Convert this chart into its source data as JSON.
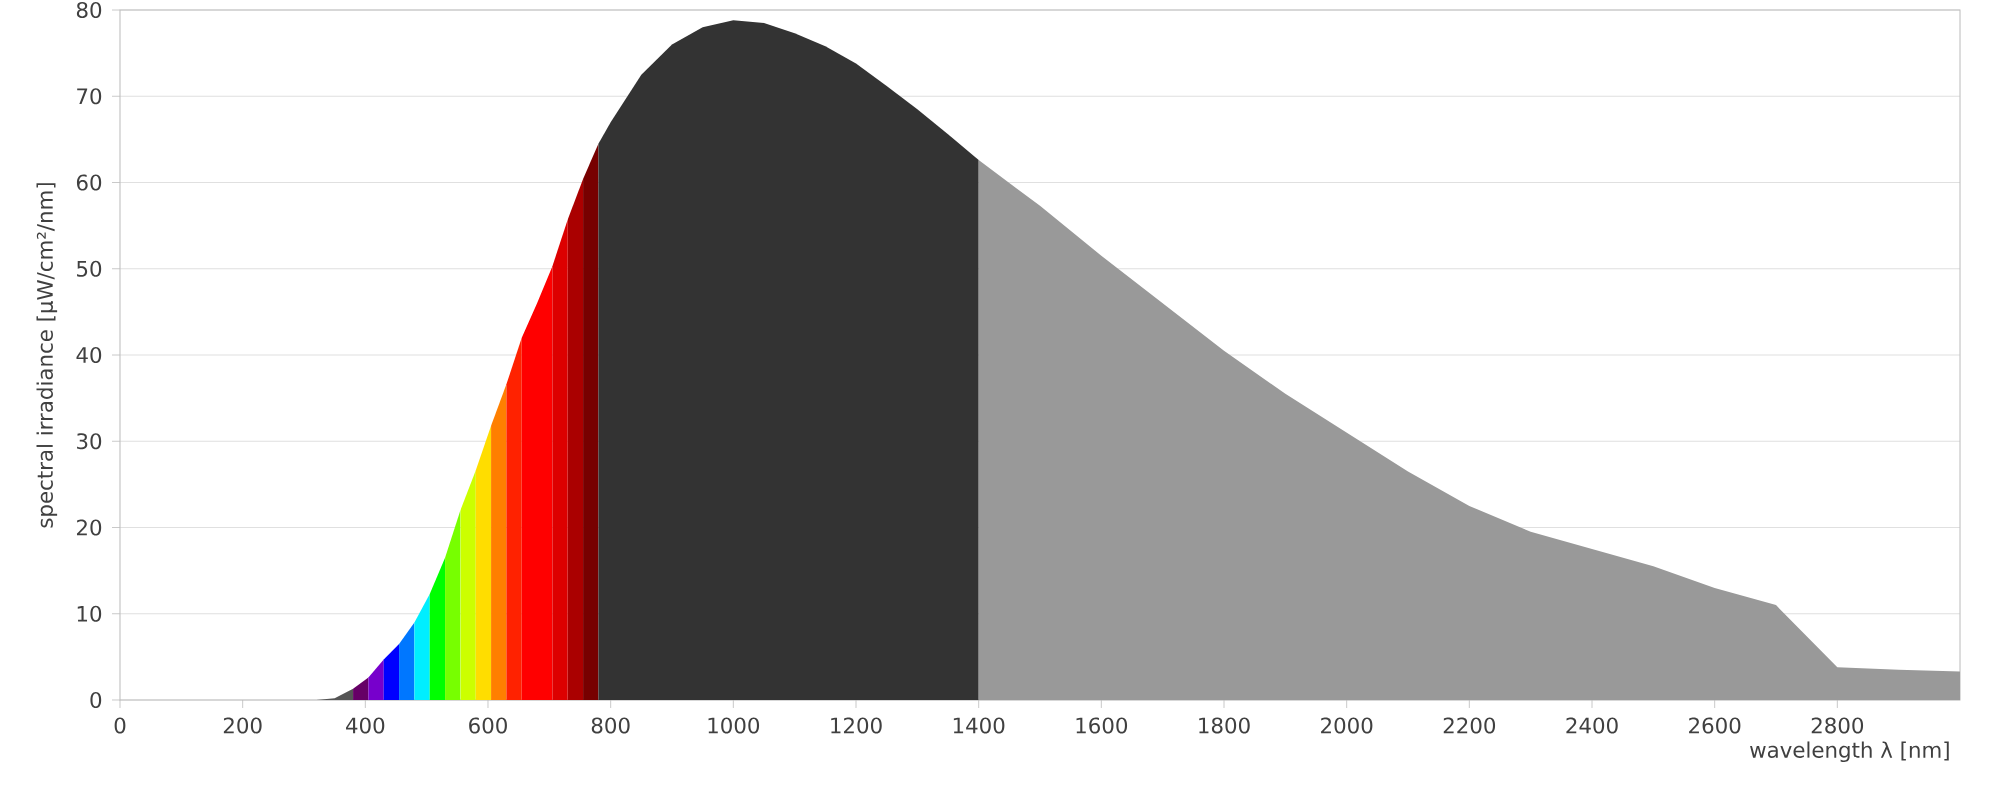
{
  "chart_data": {
    "type": "area",
    "xlabel": "wavelength λ [nm]",
    "ylabel": "spectral irradiance [µW/cm²/nm]",
    "xlim": [
      0,
      3000
    ],
    "ylim": [
      0,
      80
    ],
    "xticks": [
      0,
      200,
      400,
      600,
      800,
      1000,
      1200,
      1400,
      1600,
      1800,
      2000,
      2200,
      2400,
      2600,
      2800
    ],
    "yticks": [
      0,
      10,
      20,
      30,
      40,
      50,
      60,
      70,
      80
    ],
    "grid": "y",
    "series": [
      {
        "color": "#555555",
        "x": [
          320,
          350,
          380
        ],
        "values": [
          0,
          0.2,
          1.3
        ]
      },
      {
        "color": "#660066",
        "x": [
          380,
          405
        ],
        "values": [
          1.3,
          2.6
        ]
      },
      {
        "color": "#7700cc",
        "x": [
          405,
          430
        ],
        "values": [
          2.6,
          4.7
        ]
      },
      {
        "color": "#0000ff",
        "x": [
          430,
          455
        ],
        "values": [
          4.7,
          6.5
        ]
      },
      {
        "color": "#0077ff",
        "x": [
          455,
          480
        ],
        "values": [
          6.5,
          9
        ]
      },
      {
        "color": "#00eeff",
        "x": [
          480,
          505
        ],
        "values": [
          9,
          12.3
        ]
      },
      {
        "color": "#00ff00",
        "x": [
          505,
          530
        ],
        "values": [
          12.3,
          16.5
        ]
      },
      {
        "color": "#77ff00",
        "x": [
          530,
          555
        ],
        "values": [
          16.5,
          22
        ]
      },
      {
        "color": "#ccff00",
        "x": [
          555,
          580
        ],
        "values": [
          22,
          26.6
        ]
      },
      {
        "color": "#ffdd00",
        "x": [
          580,
          605
        ],
        "values": [
          26.6,
          31.8
        ]
      },
      {
        "color": "#ff7f00",
        "x": [
          605,
          630
        ],
        "values": [
          31.8,
          36.6
        ]
      },
      {
        "color": "#ff2200",
        "x": [
          630,
          655
        ],
        "values": [
          36.6,
          42
        ]
      },
      {
        "color": "#ff0000",
        "x": [
          655,
          680,
          705
        ],
        "values": [
          42,
          46,
          50.3
        ]
      },
      {
        "color": "#dd0000",
        "x": [
          705,
          730
        ],
        "values": [
          50.3,
          55.7
        ]
      },
      {
        "color": "#aa0000",
        "x": [
          730,
          755
        ],
        "values": [
          55.7,
          60.4
        ]
      },
      {
        "color": "#770000",
        "x": [
          755,
          780
        ],
        "values": [
          60.4,
          64.5
        ]
      },
      {
        "color": "#333333",
        "x": [
          780,
          800,
          850,
          900,
          950,
          1000,
          1050,
          1100,
          1150,
          1200,
          1250,
          1300,
          1350,
          1400
        ],
        "values": [
          64.5,
          67,
          72.5,
          76,
          78,
          78.8,
          78.5,
          77.3,
          75.8,
          73.8,
          71.2,
          68.5,
          65.6,
          62.6
        ]
      },
      {
        "color": "#999999",
        "x": [
          1400,
          1500,
          1600,
          1700,
          1800,
          1900,
          2000,
          2100,
          2200,
          2300,
          2400,
          2500,
          2600,
          2700,
          2800,
          2900,
          3000
        ],
        "values": [
          62.6,
          57.3,
          51.5,
          46,
          40.5,
          35.5,
          31,
          26.5,
          22.5,
          19.5,
          17.5,
          15.5,
          13,
          11,
          3.8,
          3.5,
          3.3
        ]
      }
    ]
  }
}
